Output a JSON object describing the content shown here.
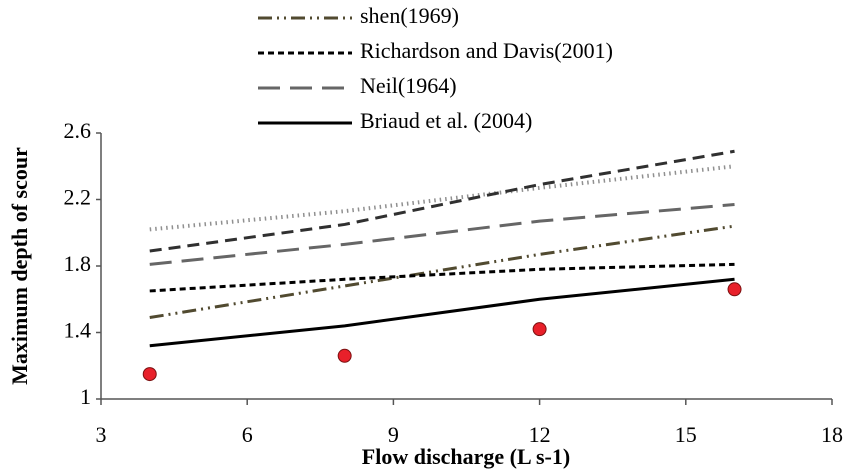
{
  "chart_data": {
    "type": "line",
    "x_label": "Flow discharge (L s-1)",
    "y_label": "Maximum depth of scour",
    "x": [
      4,
      8,
      12,
      16
    ],
    "xlim": [
      3,
      18
    ],
    "xticks": [
      3,
      6,
      9,
      12,
      15,
      18
    ],
    "ylim": [
      1,
      2.6
    ],
    "yticks": [
      1,
      1.4,
      1.8,
      2.2,
      2.6
    ],
    "grid": false,
    "legend": "top",
    "series": [
      {
        "color": "#909090",
        "dash": "1.5,4",
        "width": 4,
        "values": [
          2.02,
          2.13,
          2.27,
          2.4
        ]
      },
      {
        "color": "#303030",
        "dash": "12,7",
        "width": 3,
        "values": [
          1.89,
          2.05,
          2.29,
          2.49
        ]
      },
      {
        "name": "Neil(1964)",
        "color": "#666666",
        "dash": "22,10",
        "width": 3,
        "values": [
          1.81,
          1.93,
          2.07,
          2.17
        ]
      },
      {
        "name": "shen(1969)",
        "color": "#514a30",
        "dash": "14,5,2,5,2,5",
        "width": 3,
        "values": [
          1.49,
          1.68,
          1.87,
          2.04
        ]
      },
      {
        "name": "Richardson and Davis(2001)",
        "color": "#000000",
        "dash": "6,4",
        "width": 3,
        "values": [
          1.65,
          1.72,
          1.78,
          1.81
        ]
      },
      {
        "name": "Briaud et al. (2004)",
        "color": "#000000",
        "dash": "none",
        "width": 3,
        "values": [
          1.32,
          1.44,
          1.6,
          1.72
        ]
      },
      {
        "color": "#e8202a",
        "mode": "markers",
        "values": [
          1.15,
          1.26,
          1.42,
          1.66
        ]
      }
    ],
    "legend_order": [
      3,
      4,
      2,
      5
    ]
  }
}
